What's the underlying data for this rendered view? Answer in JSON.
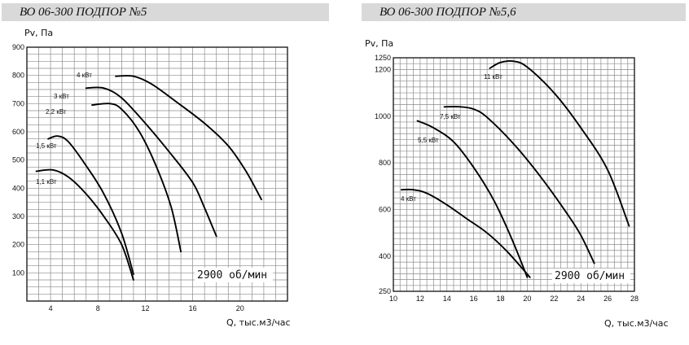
{
  "chart_data": [
    {
      "type": "line",
      "title": "ВО 06-300 ПОДПОР №5",
      "ylabel": "Pv, Па",
      "xlabel": "Q, тыс.м3/час",
      "annotation": "2900 об/мин",
      "xlim": [
        2,
        24
      ],
      "ylim": [
        0,
        900
      ],
      "xticks": [
        4,
        8,
        12,
        16,
        20
      ],
      "yticks": [
        100,
        200,
        300,
        400,
        500,
        600,
        700,
        800,
        900
      ],
      "grid": true,
      "series": [
        {
          "name": "1,1 кВт",
          "points": [
            [
              2.8,
              460
            ],
            [
              4.2,
              465
            ],
            [
              5.5,
              440
            ],
            [
              7.0,
              380
            ],
            [
              8.5,
              300
            ],
            [
              10.0,
              200
            ],
            [
              11.0,
              75
            ]
          ]
        },
        {
          "name": "1,5 кВт",
          "points": [
            [
              3.8,
              575
            ],
            [
              4.6,
              585
            ],
            [
              5.5,
              565
            ],
            [
              7.0,
              480
            ],
            [
              8.5,
              380
            ],
            [
              10.0,
              240
            ],
            [
              11.0,
              95
            ]
          ]
        },
        {
          "name": "2,2 кВт",
          "points": [
            [
              7.5,
              695
            ],
            [
              9.0,
              700
            ],
            [
              10.0,
              680
            ],
            [
              11.5,
              600
            ],
            [
              13.0,
              470
            ],
            [
              14.2,
              330
            ],
            [
              15.0,
              175
            ]
          ]
        },
        {
          "name": "3 кВт",
          "points": [
            [
              7.0,
              755
            ],
            [
              8.5,
              755
            ],
            [
              10.0,
              720
            ],
            [
              12.0,
              630
            ],
            [
              14.0,
              530
            ],
            [
              16.0,
              420
            ],
            [
              17.0,
              330
            ],
            [
              18.0,
              230
            ]
          ]
        },
        {
          "name": "4 кВт",
          "points": [
            [
              9.5,
              797
            ],
            [
              11.0,
              797
            ],
            [
              12.5,
              770
            ],
            [
              14.5,
              710
            ],
            [
              17.0,
              630
            ],
            [
              19.0,
              550
            ],
            [
              20.5,
              460
            ],
            [
              21.8,
              360
            ]
          ]
        }
      ]
    },
    {
      "type": "line",
      "title": "ВО 06-300 ПОДПОР №5,6",
      "ylabel": "Pv, Па",
      "xlabel": "Q, тыс.м3/час",
      "annotation": "2900 об/мин",
      "xlim": [
        10,
        28
      ],
      "ylim": [
        250,
        1250
      ],
      "xticks": [
        10,
        12,
        14,
        16,
        18,
        20,
        22,
        24,
        26,
        28
      ],
      "ytick_labels": [
        250,
        400,
        600,
        800,
        1000,
        1200,
        1250
      ],
      "grid": true,
      "series": [
        {
          "name": "4 кВт",
          "points": [
            [
              10.6,
              685
            ],
            [
              11.5,
              685
            ],
            [
              12.5,
              670
            ],
            [
              14.0,
              620
            ],
            [
              15.5,
              560
            ],
            [
              17.0,
              500
            ],
            [
              18.5,
              420
            ],
            [
              20.2,
              310
            ]
          ]
        },
        {
          "name": "5,5 кВт",
          "points": [
            [
              11.8,
              980
            ],
            [
              13.0,
              950
            ],
            [
              14.5,
              890
            ],
            [
              16.0,
              780
            ],
            [
              17.5,
              640
            ],
            [
              18.8,
              480
            ],
            [
              20.0,
              310
            ]
          ]
        },
        {
          "name": "7,5 кВт",
          "points": [
            [
              13.8,
              1040
            ],
            [
              15.0,
              1040
            ],
            [
              16.0,
              1030
            ],
            [
              17.0,
              995
            ],
            [
              19.0,
              880
            ],
            [
              21.0,
              740
            ],
            [
              23.0,
              580
            ],
            [
              24.0,
              490
            ],
            [
              25.0,
              370
            ]
          ]
        },
        {
          "name": "11 кВт",
          "points": [
            [
              17.2,
              1205
            ],
            [
              18.0,
              1230
            ],
            [
              19.0,
              1235
            ],
            [
              20.0,
              1210
            ],
            [
              22.0,
              1100
            ],
            [
              24.0,
              950
            ],
            [
              26.0,
              770
            ],
            [
              27.6,
              530
            ]
          ]
        }
      ]
    }
  ]
}
